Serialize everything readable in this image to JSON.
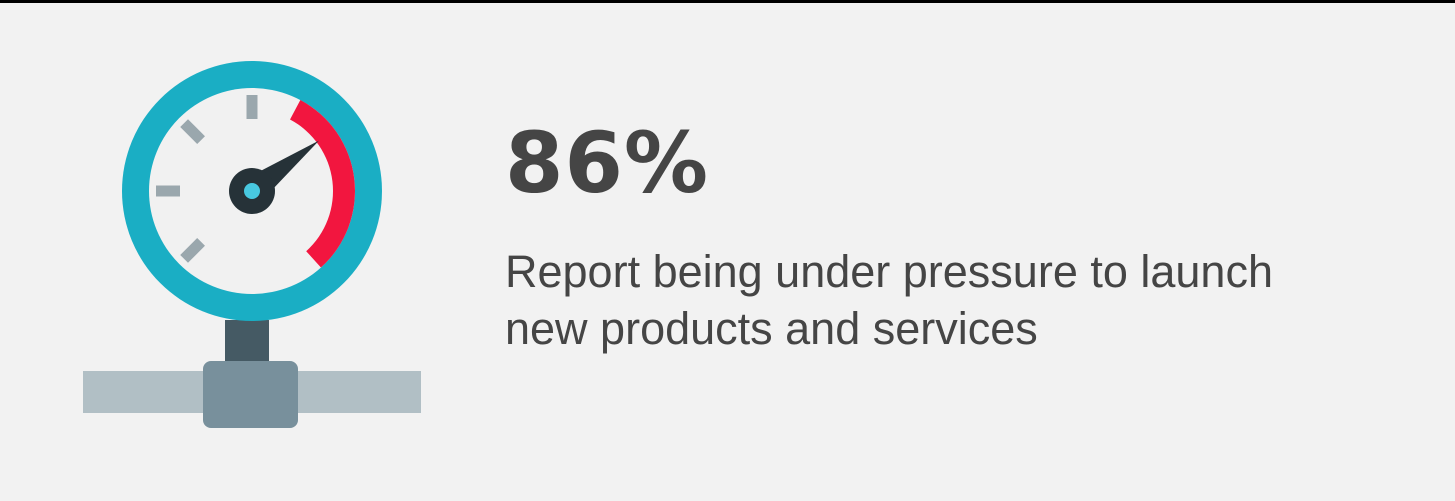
{
  "colors": {
    "background": "#f2f2f2",
    "text": "#454545",
    "gauge_ring": "#1aaec4",
    "gauge_face": "#f1f1f1",
    "danger_arc": "#f2163f",
    "needle": "#263238",
    "needle_center": "#48c8e0",
    "ticks": "#9aa7ad",
    "pipe": "#b1bfc5",
    "fitting": "#78909c",
    "stem": "#455a64"
  },
  "illustration": {
    "icon": "pressure-gauge-icon",
    "gauge_level": 0.86
  },
  "stat": {
    "value": "86%",
    "caption": "Report being under pressure to launch new products and services"
  }
}
